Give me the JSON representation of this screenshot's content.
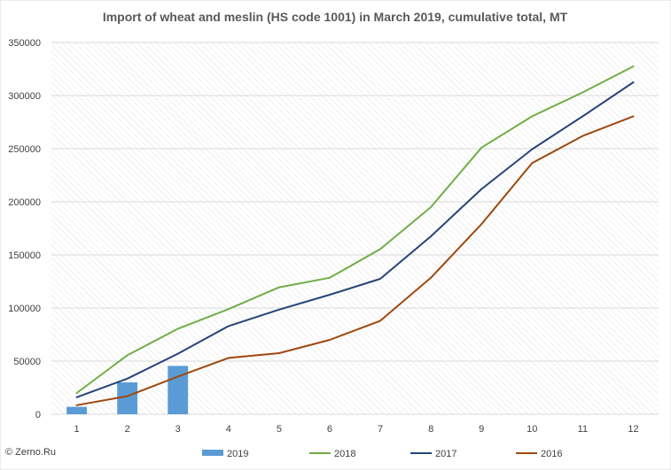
{
  "chart_data": {
    "type": "bar",
    "title": "Import of wheat and meslin (HS code 1001) in March 2019, cumulative total, MT",
    "categories": [
      "1",
      "2",
      "3",
      "4",
      "5",
      "6",
      "7",
      "8",
      "9",
      "10",
      "11",
      "12"
    ],
    "y_ticks": [
      "0",
      "50000",
      "100000",
      "150000",
      "200000",
      "250000",
      "300000",
      "350000"
    ],
    "ylim": [
      0,
      350000
    ],
    "grid": true,
    "legend": "bottom",
    "series": [
      {
        "name": "2019",
        "type": "bar",
        "color": "#5b9bd5",
        "values": [
          7000,
          30000,
          45500,
          null,
          null,
          null,
          null,
          null,
          null,
          null,
          null,
          null
        ]
      },
      {
        "name": "2018",
        "type": "line",
        "color": "#70ad47",
        "values": [
          20000,
          55500,
          80500,
          99000,
          119500,
          128500,
          155500,
          195000,
          251000,
          280500,
          303000,
          327500
        ]
      },
      {
        "name": "2017",
        "type": "line",
        "color": "#264478",
        "values": [
          16000,
          33500,
          57000,
          83000,
          98500,
          112500,
          127500,
          167500,
          212000,
          249500,
          280500,
          312500
        ]
      },
      {
        "name": "2016",
        "type": "line",
        "color": "#9e480e",
        "values": [
          8500,
          17000,
          35500,
          53000,
          57500,
          70000,
          88000,
          128500,
          179000,
          236500,
          262000,
          280500
        ]
      }
    ]
  },
  "credit": "© Zerno.Ru"
}
